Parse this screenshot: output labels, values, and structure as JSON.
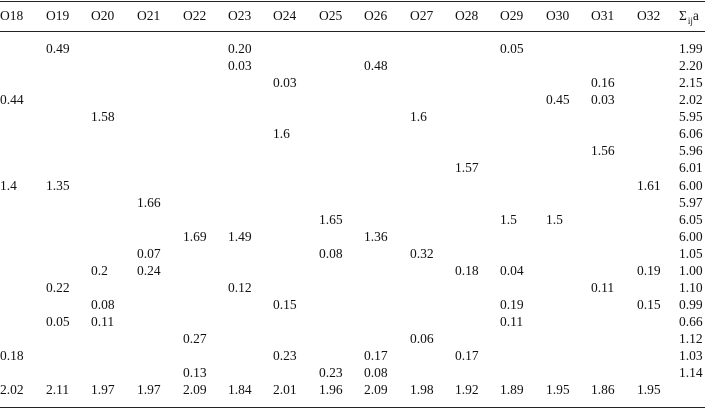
{
  "header": {
    "columns": [
      "O18",
      "O19",
      "O20",
      "O21",
      "O22",
      "O23",
      "O24",
      "O25",
      "O26",
      "O27",
      "O28",
      "O29",
      "O30",
      "O31",
      "O32"
    ],
    "sum_label": "Σ",
    "sum_sub": "ij",
    "sum_suffix": "a"
  },
  "rows": [
    [
      "",
      "0.49",
      "",
      "",
      "",
      "0.20",
      "",
      "",
      "",
      "",
      "",
      "0.05",
      "",
      "",
      "",
      "1.99"
    ],
    [
      "",
      "",
      "",
      "",
      "",
      "0.03",
      "",
      "",
      "0.48",
      "",
      "",
      "",
      "",
      "",
      "",
      "2.20"
    ],
    [
      "",
      "",
      "",
      "",
      "",
      "",
      "0.03",
      "",
      "",
      "",
      "",
      "",
      "",
      "0.16",
      "",
      "2.15"
    ],
    [
      "0.44",
      "",
      "",
      "",
      "",
      "",
      "",
      "",
      "",
      "",
      "",
      "",
      "0.45",
      "0.03",
      "",
      "2.02"
    ],
    [
      "",
      "",
      "1.58",
      "",
      "",
      "",
      "",
      "",
      "",
      "1.6",
      "",
      "",
      "",
      "",
      "",
      "5.95"
    ],
    [
      "",
      "",
      "",
      "",
      "",
      "",
      "1.6",
      "",
      "",
      "",
      "",
      "",
      "",
      "",
      "",
      "6.06"
    ],
    [
      "",
      "",
      "",
      "",
      "",
      "",
      "",
      "",
      "",
      "",
      "",
      "",
      "",
      "1.56",
      "",
      "5.96"
    ],
    [
      "",
      "",
      "",
      "",
      "",
      "",
      "",
      "",
      "",
      "",
      "1.57",
      "",
      "",
      "",
      "",
      "6.01"
    ],
    [
      "1.4",
      "1.35",
      "",
      "",
      "",
      "",
      "",
      "",
      "",
      "",
      "",
      "",
      "",
      "",
      "1.61",
      "6.00"
    ],
    [
      "",
      "",
      "",
      "1.66",
      "",
      "",
      "",
      "",
      "",
      "",
      "",
      "",
      "",
      "",
      "",
      "5.97"
    ],
    [
      "",
      "",
      "",
      "",
      "",
      "",
      "",
      "1.65",
      "",
      "",
      "",
      "1.5",
      "1.5",
      "",
      "",
      "6.05"
    ],
    [
      "",
      "",
      "",
      "",
      "1.69",
      "1.49",
      "",
      "",
      "1.36",
      "",
      "",
      "",
      "",
      "",
      "",
      "6.00"
    ],
    [
      "",
      "",
      "",
      "0.07",
      "",
      "",
      "",
      "0.08",
      "",
      "0.32",
      "",
      "",
      "",
      "",
      "",
      "1.05"
    ],
    [
      "",
      "",
      "0.2",
      "0.24",
      "",
      "",
      "",
      "",
      "",
      "",
      "0.18",
      "0.04",
      "",
      "",
      "0.19",
      "1.00"
    ],
    [
      "",
      "0.22",
      "",
      "",
      "",
      "0.12",
      "",
      "",
      "",
      "",
      "",
      "",
      "",
      "0.11",
      "",
      "1.10"
    ],
    [
      "",
      "",
      "0.08",
      "",
      "",
      "",
      "0.15",
      "",
      "",
      "",
      "",
      "0.19",
      "",
      "",
      "0.15",
      "0.99"
    ],
    [
      "",
      "0.05",
      "0.11",
      "",
      "",
      "",
      "",
      "",
      "",
      "",
      "",
      "0.11",
      "",
      "",
      "",
      "0.66"
    ],
    [
      "",
      "",
      "",
      "",
      "0.27",
      "",
      "",
      "",
      "",
      "0.06",
      "",
      "",
      "",
      "",
      "",
      "1.12"
    ],
    [
      "0.18",
      "",
      "",
      "",
      "",
      "",
      "0.23",
      "",
      "0.17",
      "",
      "0.17",
      "",
      "",
      "",
      "",
      "1.03"
    ],
    [
      "",
      "",
      "",
      "",
      "0.13",
      "",
      "",
      "0.23",
      "0.08",
      "",
      "",
      "",
      "",
      "",
      "",
      "1.14"
    ]
  ],
  "totals": [
    "2.02",
    "2.11",
    "1.97",
    "1.97",
    "2.09",
    "1.84",
    "2.01",
    "1.96",
    "2.09",
    "1.98",
    "1.92",
    "1.89",
    "1.95",
    "1.86",
    "1.95",
    ""
  ]
}
